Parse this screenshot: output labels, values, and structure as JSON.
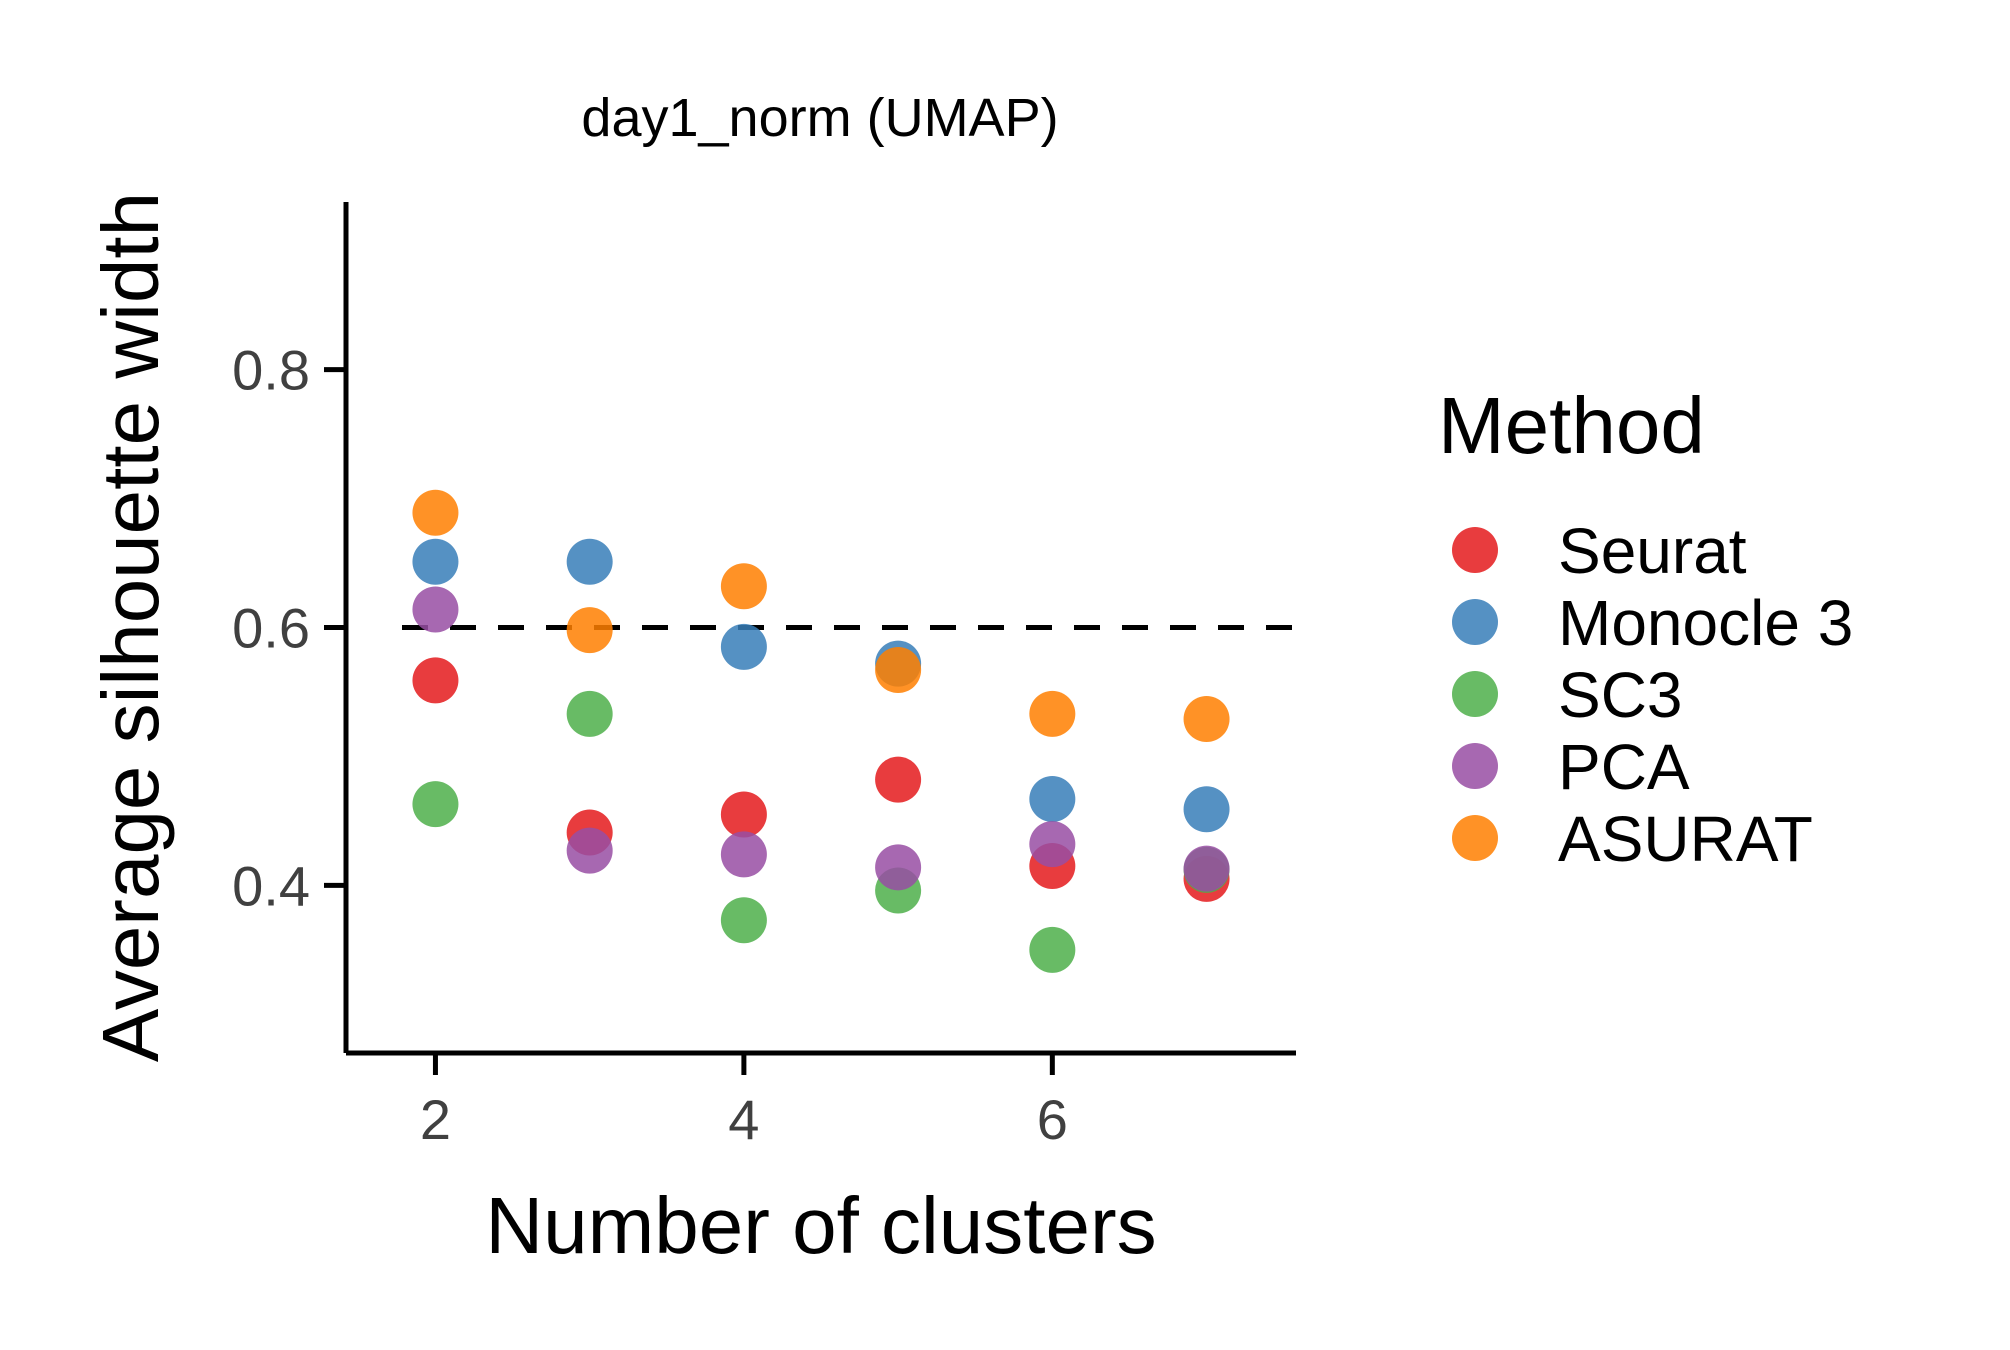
{
  "chart_data": {
    "type": "scatter",
    "title": "day1_norm (UMAP)",
    "xlabel": "Number of clusters",
    "ylabel": "Average silhouette width",
    "xlim": [
      1.42,
      7.58
    ],
    "ylim": [
      0.27,
      0.93
    ],
    "xticks": [
      2,
      4,
      6
    ],
    "yticks": [
      0.4,
      0.6,
      0.8
    ],
    "xtick_labels": [
      "2",
      "4",
      "6"
    ],
    "ytick_labels": [
      "0.4",
      "0.6",
      "0.8"
    ],
    "reference_line": {
      "y": 0.6,
      "style": "dashed",
      "color": "#000000"
    },
    "grid": false,
    "legend": {
      "title": "Method",
      "placement": "right"
    },
    "series": [
      {
        "name": "Seurat",
        "color": "#E41A1C",
        "x": [
          2,
          3,
          4,
          5,
          6,
          7
        ],
        "y": [
          0.559,
          0.441,
          0.455,
          0.482,
          0.415,
          0.405
        ]
      },
      {
        "name": "Monocle 3",
        "color": "#377EB8",
        "x": [
          2,
          3,
          4,
          5,
          6,
          7
        ],
        "y": [
          0.651,
          0.651,
          0.585,
          0.572,
          0.467,
          0.459
        ]
      },
      {
        "name": "SC3",
        "color": "#4DAF4A",
        "x": [
          2,
          3,
          4,
          5,
          6,
          7
        ],
        "y": [
          0.463,
          0.533,
          0.373,
          0.396,
          0.35,
          0.412
        ]
      },
      {
        "name": "PCA",
        "color": "#984EA3",
        "x": [
          2,
          3,
          4,
          5,
          6,
          7
        ],
        "y": [
          0.614,
          0.427,
          0.424,
          0.414,
          0.432,
          0.413
        ]
      },
      {
        "name": "ASURAT",
        "color": "#FF7F00",
        "x": [
          2,
          3,
          4,
          5,
          6,
          7
        ],
        "y": [
          0.689,
          0.598,
          0.632,
          0.567,
          0.533,
          0.529
        ]
      }
    ]
  }
}
